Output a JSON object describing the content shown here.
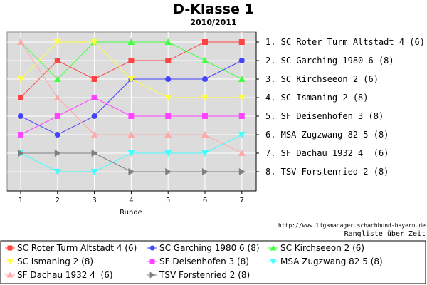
{
  "chart_data": {
    "type": "line",
    "title": "D-Klasse 1",
    "subtitle": "2010/2011",
    "xlabel": "Runde",
    "ylabel": "",
    "x": [
      1,
      2,
      3,
      4,
      5,
      6,
      7
    ],
    "ylim": [
      1,
      8
    ],
    "y_inverted": true,
    "grid": true,
    "series": [
      {
        "name": "SC Roter Turm Altstadt 4 (6)",
        "color": "#ff4444",
        "marker": "square",
        "values": [
          4,
          2,
          3,
          2,
          2,
          1,
          1
        ]
      },
      {
        "name": "SC Garching 1980 6 (8)",
        "color": "#4444ff",
        "marker": "circle",
        "values": [
          5,
          6,
          5,
          3,
          3,
          3,
          2
        ]
      },
      {
        "name": "SC Kirchseeon 2 (6)",
        "color": "#44ff44",
        "marker": "triangle-up",
        "values": [
          1,
          3,
          1,
          1,
          1,
          2,
          3
        ]
      },
      {
        "name": "SC Ismaning 2 (8)",
        "color": "#ffff44",
        "marker": "triangle-down",
        "values": [
          3,
          1,
          1,
          3,
          4,
          4,
          4
        ]
      },
      {
        "name": "SF Deisenhofen 3 (8)",
        "color": "#ff44ff",
        "marker": "square",
        "values": [
          6,
          5,
          4,
          5,
          5,
          5,
          5
        ]
      },
      {
        "name": "MSA Zugzwang 82 5 (8)",
        "color": "#44ffff",
        "marker": "triangle-down",
        "values": [
          7,
          8,
          8,
          7,
          7,
          7,
          6
        ]
      },
      {
        "name": "SF Dachau 1932 4  (6)",
        "color": "#ffaaaa",
        "marker": "triangle-up",
        "values": [
          1,
          4,
          6,
          6,
          6,
          6,
          7
        ]
      },
      {
        "name": "TSV Forstenried 2 (8)",
        "color": "#808080",
        "marker": "triangle-right",
        "values": [
          7,
          7,
          7,
          8,
          8,
          8,
          8
        ]
      }
    ],
    "final_ranking": [
      "1. SC Roter Turm Altstadt 4 (6)",
      "2. SC Garching 1980 6 (8)",
      "3. SC Kirchseeon 2 (6)",
      "4. SC Ismaning 2 (8)",
      "5. SF Deisenhofen 3 (8)",
      "6. MSA Zugzwang 82 5 (8)",
      "7. SF Dachau 1932 4  (6)",
      "8. TSV Forstenried 2 (8)"
    ],
    "legend_position": "bottom"
  },
  "source_url": "http://www.ligamanager.schachbund-bayern.de",
  "caption": "Rangliste über Zeit",
  "colors": {
    "plot_background": "#dcdcdc",
    "grid": "#ffffff"
  }
}
